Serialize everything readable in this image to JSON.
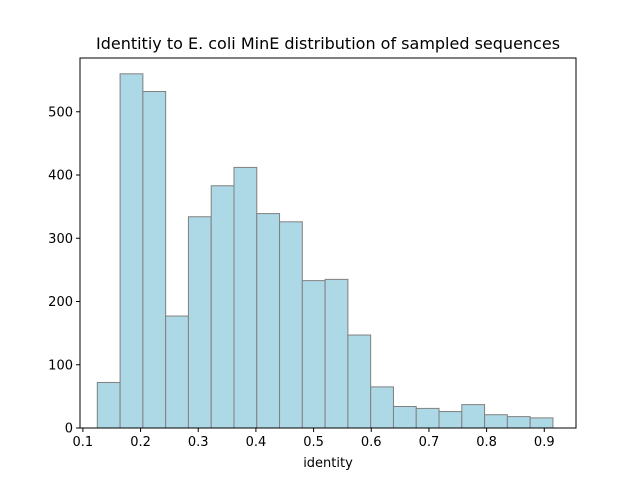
{
  "chart_data": {
    "type": "bar",
    "title": "Identitiy to E. coli MinE distribution of sampled sequences",
    "xlabel": "identity",
    "ylabel": "",
    "xlim": [
      0.095,
      0.955
    ],
    "ylim": [
      0,
      585
    ],
    "grid": false,
    "bar_color": "#add8e6",
    "bar_edge_color": "#808080",
    "bin_edges": [
      0.125,
      0.1645,
      0.204,
      0.2435,
      0.283,
      0.3225,
      0.362,
      0.4015,
      0.441,
      0.4805,
      0.52,
      0.5595,
      0.599,
      0.6385,
      0.678,
      0.7175,
      0.757,
      0.7965,
      0.836,
      0.8755,
      0.915
    ],
    "values": [
      72,
      560,
      532,
      177,
      334,
      383,
      412,
      339,
      326,
      233,
      235,
      147,
      65,
      34,
      31,
      26,
      37,
      21,
      18,
      16
    ],
    "xticks": [
      {
        "value": 0.1,
        "label": "0.1"
      },
      {
        "value": 0.2,
        "label": "0.2"
      },
      {
        "value": 0.3,
        "label": "0.3"
      },
      {
        "value": 0.4,
        "label": "0.4"
      },
      {
        "value": 0.5,
        "label": "0.5"
      },
      {
        "value": 0.6,
        "label": "0.6"
      },
      {
        "value": 0.7,
        "label": "0.7"
      },
      {
        "value": 0.8,
        "label": "0.8"
      },
      {
        "value": 0.9,
        "label": "0.9"
      }
    ],
    "yticks": [
      {
        "value": 0,
        "label": "0"
      },
      {
        "value": 100,
        "label": "100"
      },
      {
        "value": 200,
        "label": "200"
      },
      {
        "value": 300,
        "label": "300"
      },
      {
        "value": 400,
        "label": "400"
      },
      {
        "value": 500,
        "label": "500"
      }
    ]
  }
}
